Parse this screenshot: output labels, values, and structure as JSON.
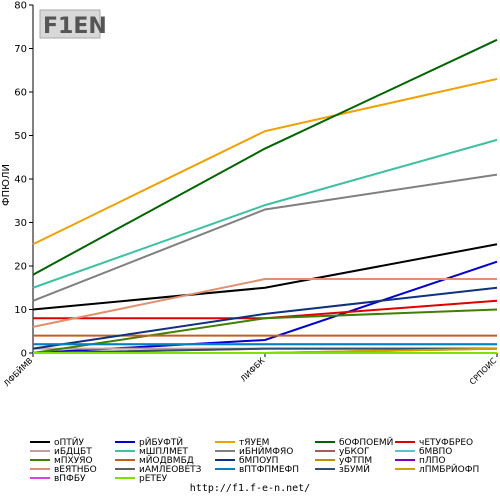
{
  "chart_data": {
    "type": "line",
    "ylabel": "ФПЮЛИ",
    "ylim": [
      0,
      80
    ],
    "yticks": [
      0,
      10,
      20,
      30,
      40,
      50,
      60,
      70,
      80
    ],
    "categories": [
      "ЛФБЙМВ",
      "ЛИФБК",
      "СРПОИС"
    ],
    "grid": false,
    "legend_placement": "bottom",
    "series": [
      {
        "name": "оПТЙУ",
        "color": "#000000",
        "values": [
          10,
          15,
          25
        ]
      },
      {
        "name": "рЙБУФТЙ",
        "color": "#0000cc",
        "values": [
          0,
          3,
          21
        ]
      },
      {
        "name": "тЯУЕМ",
        "color": "#f0a000",
        "values": [
          25,
          51,
          63
        ]
      },
      {
        "name": "бОФПОЕМЙ",
        "color": "#006400",
        "values": [
          18,
          47,
          72
        ]
      },
      {
        "name": "чЕТУФБРЕО",
        "color": "#dd0000",
        "values": [
          8,
          8,
          12
        ]
      },
      {
        "name": "иБДЦБТ",
        "color": "#c0a0a0",
        "values": [
          1,
          1,
          1
        ]
      },
      {
        "name": "мШПЛМЕТ",
        "color": "#40c0a0",
        "values": [
          15,
          34,
          49
        ]
      },
      {
        "name": "иБНЙМФЯО",
        "color": "#808080",
        "values": [
          12,
          33,
          41
        ]
      },
      {
        "name": "уБКОГ",
        "color": "#a06060",
        "values": [
          0,
          0,
          1
        ]
      },
      {
        "name": "бМВПО",
        "color": "#60c0d0",
        "values": [
          2,
          2,
          2
        ]
      },
      {
        "name": "мПХУЯО",
        "color": "#408000",
        "values": [
          0,
          8,
          10
        ]
      },
      {
        "name": "мЙОДВМБД",
        "color": "#c06020",
        "values": [
          4,
          4,
          4
        ]
      },
      {
        "name": "бМПОУП",
        "color": "#103080",
        "values": [
          1,
          9,
          15
        ]
      },
      {
        "name": "уФТПМ",
        "color": "#c09000",
        "values": [
          0,
          1,
          1
        ]
      },
      {
        "name": "пЛПО",
        "color": "#8000c0",
        "values": [
          0,
          0,
          0
        ]
      },
      {
        "name": "вЕЯТНБО",
        "color": "#e09070",
        "values": [
          6,
          17,
          17
        ]
      },
      {
        "name": "иАМЛЕОВЕТЗ",
        "color": "#606060",
        "values": [
          0,
          0,
          0
        ]
      },
      {
        "name": "вПТФПМЕФП",
        "color": "#0080c0",
        "values": [
          2,
          2,
          2
        ]
      },
      {
        "name": "зБУМЙ",
        "color": "#305070",
        "values": [
          0,
          1,
          1
        ]
      },
      {
        "name": "лПМБРЙОФП",
        "color": "#d0a000",
        "values": [
          0,
          0,
          1
        ]
      },
      {
        "name": "вПФБУ",
        "color": "#e040e0",
        "values": [
          0,
          0,
          0
        ]
      },
      {
        "name": "рЕТЕУ",
        "color": "#80e000",
        "values": [
          0,
          0,
          0
        ]
      }
    ]
  },
  "logo": {
    "text": "F1EN"
  },
  "footer": {
    "url": "http://f1.f-e-n.net/"
  }
}
